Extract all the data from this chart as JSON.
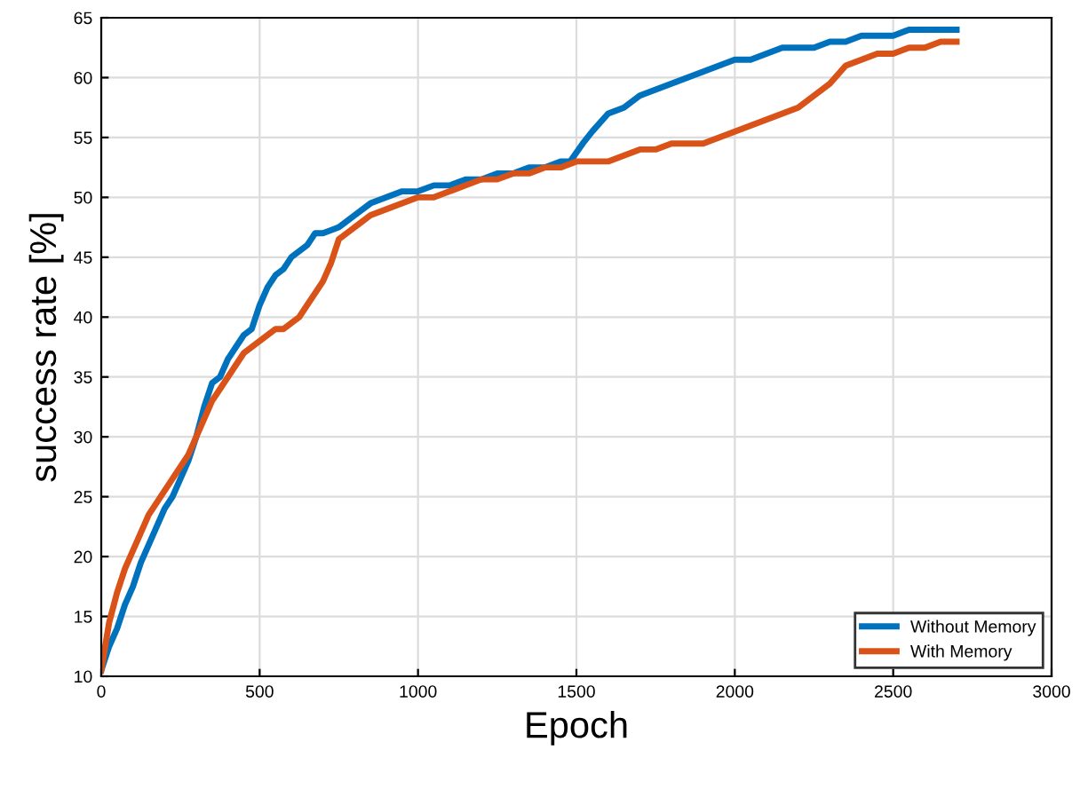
{
  "chart_data": {
    "type": "line",
    "xlabel": "Epoch",
    "ylabel": "success rate [%]",
    "xlim": [
      0,
      3000
    ],
    "xticks": [
      0,
      500,
      1000,
      1500,
      2000,
      2500,
      3000
    ],
    "ylim": [
      10,
      65
    ],
    "yticks": [
      10,
      15,
      20,
      25,
      30,
      35,
      40,
      45,
      50,
      55,
      60,
      65
    ],
    "grid": true,
    "legend": "bottom right",
    "line_style": "solid",
    "marker": "none",
    "series": [
      {
        "name": "Without Memory",
        "color": "#0072bd",
        "x": [
          0,
          25,
          50,
          75,
          100,
          125,
          150,
          175,
          200,
          225,
          250,
          275,
          300,
          325,
          350,
          375,
          400,
          425,
          450,
          475,
          500,
          525,
          550,
          575,
          600,
          625,
          650,
          675,
          700,
          750,
          800,
          850,
          900,
          950,
          1000,
          1050,
          1100,
          1150,
          1200,
          1250,
          1300,
          1350,
          1400,
          1450,
          1480,
          1520,
          1550,
          1600,
          1650,
          1700,
          1750,
          1800,
          1850,
          1900,
          1950,
          2000,
          2050,
          2100,
          2150,
          2200,
          2250,
          2300,
          2350,
          2400,
          2450,
          2500,
          2550,
          2600,
          2650,
          2700
        ],
        "values": [
          10.5,
          12.5,
          14,
          16,
          17.5,
          19.5,
          21,
          22.5,
          24,
          25,
          26.5,
          28,
          30,
          32.5,
          34.5,
          35,
          36.5,
          37.5,
          38.5,
          39,
          41,
          42.5,
          43.5,
          44,
          45,
          45.5,
          46,
          47,
          47,
          47.5,
          48.5,
          49.5,
          50,
          50.5,
          50.5,
          51,
          51,
          51.5,
          51.5,
          52,
          52,
          52.5,
          52.5,
          53,
          53,
          54.5,
          55.5,
          57,
          57.5,
          58.5,
          59,
          59.5,
          60,
          60.5,
          61,
          61.5,
          61.5,
          62,
          62.5,
          62.5,
          62.5,
          63,
          63,
          63.5,
          63.5,
          63.5,
          64,
          64,
          64,
          64
        ]
      },
      {
        "name": "With Memory",
        "color": "#d95319",
        "x": [
          0,
          25,
          50,
          75,
          100,
          125,
          150,
          175,
          200,
          225,
          250,
          275,
          300,
          325,
          350,
          375,
          400,
          425,
          450,
          475,
          500,
          525,
          550,
          575,
          600,
          625,
          650,
          675,
          700,
          725,
          750,
          800,
          850,
          900,
          950,
          1000,
          1050,
          1100,
          1150,
          1200,
          1250,
          1300,
          1350,
          1400,
          1450,
          1500,
          1550,
          1600,
          1650,
          1700,
          1750,
          1800,
          1850,
          1900,
          1950,
          2000,
          2050,
          2100,
          2150,
          2200,
          2250,
          2300,
          2350,
          2400,
          2450,
          2500,
          2550,
          2600,
          2650,
          2700
        ],
        "values": [
          10.5,
          14.5,
          17,
          19,
          20.5,
          22,
          23.5,
          24.5,
          25.5,
          26.5,
          27.5,
          28.5,
          30,
          31.5,
          33,
          34,
          35,
          36,
          37,
          37.5,
          38,
          38.5,
          39,
          39,
          39.5,
          40,
          41,
          42,
          43,
          44.5,
          46.5,
          47.5,
          48.5,
          49,
          49.5,
          50,
          50,
          50.5,
          51,
          51.5,
          51.5,
          52,
          52,
          52.5,
          52.5,
          53,
          53,
          53,
          53.5,
          54,
          54,
          54.5,
          54.5,
          54.5,
          55,
          55.5,
          56,
          56.5,
          57,
          57.5,
          58.5,
          59.5,
          61,
          61.5,
          62,
          62,
          62.5,
          62.5,
          63,
          63
        ]
      }
    ]
  }
}
